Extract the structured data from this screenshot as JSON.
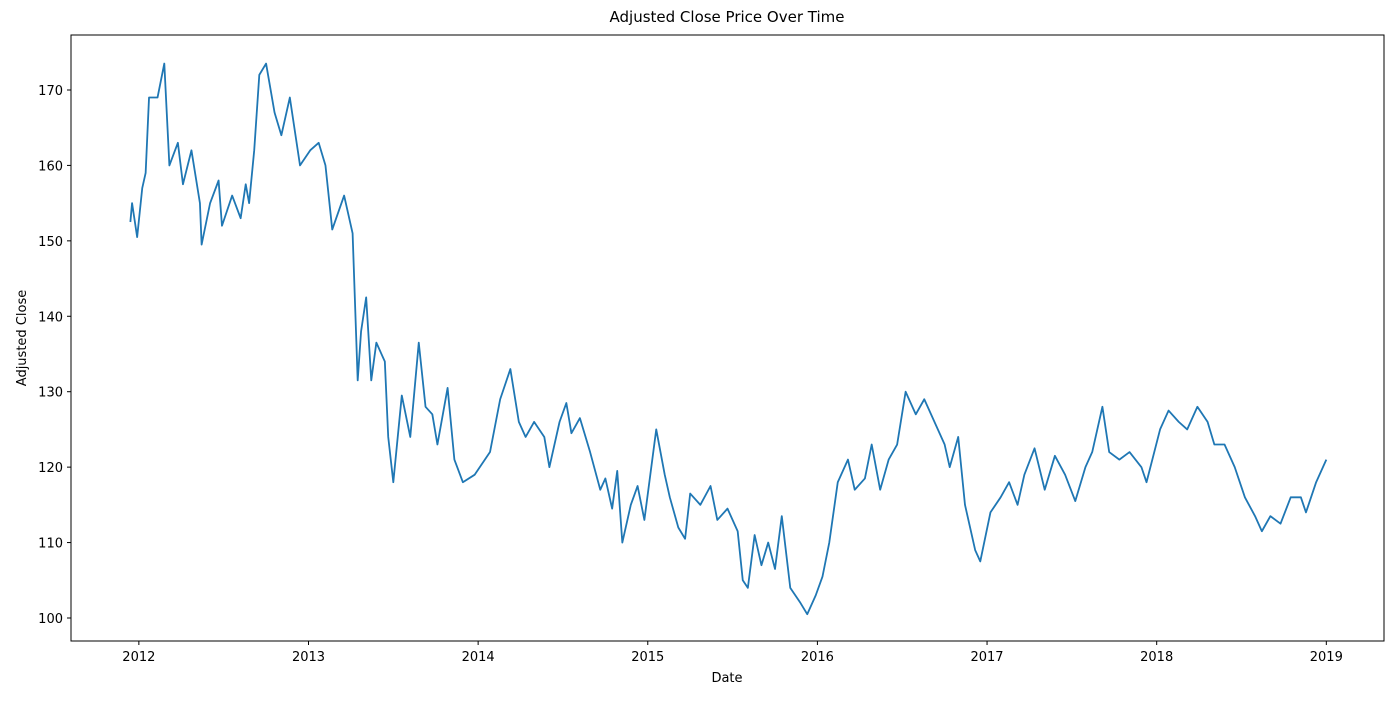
{
  "chart_data": {
    "type": "line",
    "title": "Adjusted Close Price Over Time",
    "x_label": "Date",
    "y_label": "Adjusted Close",
    "xlim": [
      2011.6,
      2019.34
    ],
    "xticks": [
      2012,
      2013,
      2014,
      2015,
      2016,
      2017,
      2018,
      2019
    ],
    "ylim": [
      96.95,
      177.29
    ],
    "yticks": [
      100,
      110,
      120,
      130,
      140,
      150,
      160,
      170
    ],
    "grid": false,
    "series": [
      {
        "name": "Adjusted Close",
        "color": "#1f77b4",
        "x": [
          2011.95,
          2011.96,
          2011.99,
          2012.02,
          2012.04,
          2012.06,
          2012.11,
          2012.15,
          2012.18,
          2012.23,
          2012.26,
          2012.31,
          2012.36,
          2012.37,
          2012.42,
          2012.47,
          2012.49,
          2012.55,
          2012.6,
          2012.63,
          2012.65,
          2012.68,
          2012.71,
          2012.75,
          2012.8,
          2012.84,
          2012.89,
          2012.95,
          2013.01,
          2013.06,
          2013.1,
          2013.14,
          2013.21,
          2013.26,
          2013.29,
          2013.31,
          2013.34,
          2013.37,
          2013.4,
          2013.45,
          2013.47,
          2013.5,
          2013.55,
          2013.6,
          2013.65,
          2013.69,
          2013.73,
          2013.76,
          2013.82,
          2013.86,
          2013.91,
          2013.98,
          2014.07,
          2014.13,
          2014.19,
          2014.24,
          2014.28,
          2014.33,
          2014.39,
          2014.42,
          2014.48,
          2014.52,
          2014.55,
          2014.6,
          2014.66,
          2014.72,
          2014.75,
          2014.79,
          2014.82,
          2014.85,
          2014.9,
          2014.94,
          2014.98,
          2015.05,
          2015.1,
          2015.13,
          2015.18,
          2015.22,
          2015.25,
          2015.31,
          2015.37,
          2015.41,
          2015.47,
          2015.53,
          2015.56,
          2015.59,
          2015.63,
          2015.67,
          2015.71,
          2015.75,
          2015.79,
          2015.84,
          2015.9,
          2015.94,
          2015.99,
          2016.03,
          2016.07,
          2016.12,
          2016.18,
          2016.22,
          2016.28,
          2016.32,
          2016.37,
          2016.42,
          2016.47,
          2016.52,
          2016.58,
          2016.63,
          2016.69,
          2016.75,
          2016.78,
          2016.83,
          2016.87,
          2016.93,
          2016.96,
          2017.02,
          2017.08,
          2017.13,
          2017.18,
          2017.22,
          2017.28,
          2017.34,
          2017.4,
          2017.46,
          2017.52,
          2017.58,
          2017.62,
          2017.68,
          2017.72,
          2017.78,
          2017.84,
          2017.91,
          2017.94,
          2018.02,
          2018.07,
          2018.13,
          2018.18,
          2018.24,
          2018.3,
          2018.34,
          2018.4,
          2018.46,
          2018.52,
          2018.58,
          2018.62,
          2018.67,
          2018.73,
          2018.79,
          2018.85,
          2018.88,
          2018.94,
          2019.0
        ],
        "values": [
          152.5,
          155,
          150.5,
          157,
          159,
          169,
          169,
          173.5,
          160,
          163,
          157.5,
          162,
          155,
          149.5,
          155,
          158,
          152,
          156,
          153,
          157.5,
          155,
          162,
          172,
          173.5,
          167,
          164,
          169,
          160,
          162,
          163,
          160,
          151.5,
          156,
          151,
          131.5,
          138,
          142.5,
          131.5,
          136.5,
          134,
          124,
          118,
          129.5,
          124,
          136.5,
          128,
          127,
          123,
          130.5,
          121,
          118,
          119,
          122,
          129,
          133,
          126,
          124,
          126,
          124,
          120,
          126,
          128.5,
          124.5,
          126.5,
          122,
          117,
          118.5,
          114.5,
          119.5,
          110,
          115,
          117.5,
          113,
          125,
          119,
          116,
          112,
          110.5,
          116.5,
          115,
          117.5,
          113,
          114.5,
          111.5,
          105,
          104,
          111,
          107,
          110,
          106.5,
          113.5,
          104,
          102,
          100.5,
          103,
          105.5,
          110,
          118,
          121,
          117,
          118.5,
          123,
          117,
          121,
          123,
          130,
          127,
          129,
          126,
          123,
          120,
          124,
          115,
          109,
          107.5,
          114,
          116,
          118,
          115,
          119,
          122.5,
          117,
          121.5,
          119,
          115.5,
          120,
          122,
          128,
          122,
          121,
          122,
          120,
          118,
          125,
          127.5,
          126,
          125,
          128,
          126,
          123,
          123,
          120,
          116,
          113.5,
          111.5,
          113.5,
          112.5,
          116,
          116,
          114,
          118,
          121
        ]
      }
    ]
  }
}
